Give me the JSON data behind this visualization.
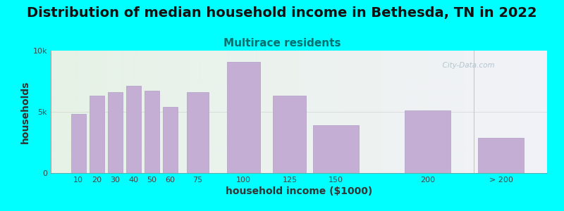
{
  "title": "Distribution of median household income in Bethesda, TN in 2022",
  "subtitle": "Multirace residents",
  "xlabel": "household income ($1000)",
  "ylabel": "households",
  "bg_color": "#00FFFF",
  "plot_bg_left": "#e6f2e6",
  "plot_bg_right": "#f2f2f8",
  "bar_color": "#c4aed4",
  "bar_edge_color": "#b09ec4",
  "categories": [
    "10",
    "20",
    "30",
    "40",
    "50",
    "60",
    "75",
    "100",
    "125",
    "150",
    "200",
    "> 200"
  ],
  "x_positions": [
    10,
    20,
    30,
    40,
    50,
    60,
    75,
    100,
    125,
    150,
    200,
    240
  ],
  "bar_widths": [
    8,
    8,
    8,
    8,
    8,
    8,
    12,
    18,
    18,
    25,
    25,
    25
  ],
  "values": [
    4800,
    6300,
    6600,
    7100,
    6700,
    5400,
    6600,
    9100,
    6300,
    3900,
    5100,
    2900
  ],
  "ylim": [
    0,
    10000
  ],
  "yticks": [
    0,
    5000,
    10000
  ],
  "ytick_labels": [
    "0",
    "5k",
    "10k"
  ],
  "xtick_positions": [
    10,
    20,
    30,
    40,
    50,
    60,
    75,
    100,
    125,
    150,
    200,
    240
  ],
  "xtick_labels": [
    "10",
    "20",
    "30",
    "40",
    "50",
    "60",
    "75",
    "100",
    "125",
    "150",
    "200",
    "> 200"
  ],
  "title_fontsize": 14,
  "subtitle_fontsize": 11,
  "axis_label_fontsize": 10,
  "tick_fontsize": 8,
  "title_color": "#111111",
  "subtitle_color": "#007070",
  "watermark_text": "  City-Data.com",
  "watermark_color": "#a8bcc8"
}
